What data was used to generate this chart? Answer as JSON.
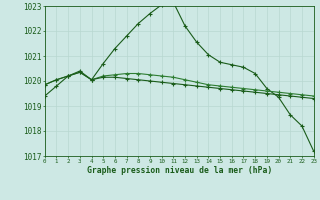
{
  "background_color": "#cde8e4",
  "grid_color_major": "#b8d8d0",
  "grid_color_minor": "#d4eae6",
  "line_color1": "#1a5c1a",
  "line_color2": "#2e7d32",
  "line_color3": "#1a5c1a",
  "xlabel": "Graphe pression niveau de la mer (hPa)",
  "xlabel_color": "#1a5c1a",
  "ylabel_min": 1017,
  "ylabel_max": 1023,
  "x_min": 0,
  "x_max": 23,
  "series1": [
    1019.4,
    1019.8,
    1020.2,
    1020.4,
    1020.05,
    1020.7,
    1021.3,
    1021.8,
    1022.3,
    1022.7,
    1023.05,
    1023.15,
    1022.2,
    1021.55,
    1021.05,
    1020.75,
    1020.65,
    1020.55,
    1020.3,
    1019.7,
    1019.35,
    1018.65,
    1018.2,
    1017.2
  ],
  "series2": [
    1019.85,
    1020.05,
    1020.2,
    1020.35,
    1020.05,
    1020.2,
    1020.25,
    1020.3,
    1020.3,
    1020.25,
    1020.2,
    1020.15,
    1020.05,
    1019.95,
    1019.85,
    1019.8,
    1019.75,
    1019.7,
    1019.65,
    1019.6,
    1019.55,
    1019.5,
    1019.45,
    1019.4
  ],
  "series3": [
    1019.85,
    1020.05,
    1020.2,
    1020.35,
    1020.05,
    1020.15,
    1020.15,
    1020.1,
    1020.05,
    1020.0,
    1019.95,
    1019.9,
    1019.85,
    1019.8,
    1019.75,
    1019.7,
    1019.65,
    1019.6,
    1019.55,
    1019.5,
    1019.45,
    1019.4,
    1019.35,
    1019.3
  ]
}
